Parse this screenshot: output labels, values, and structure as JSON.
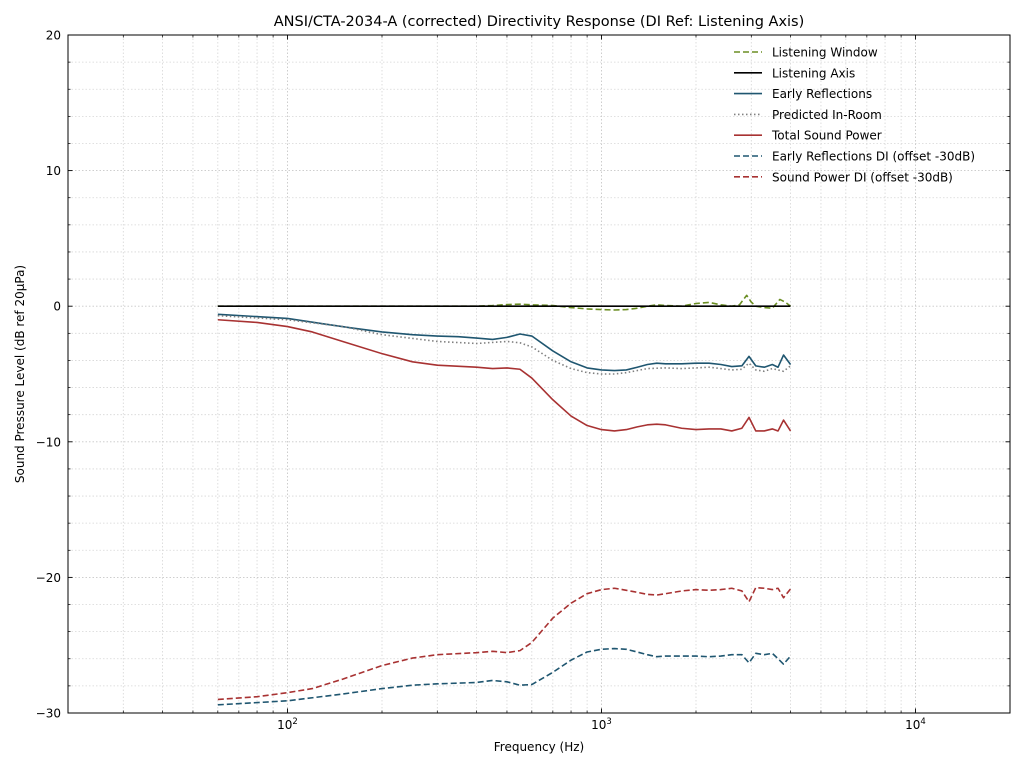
{
  "chart_data": {
    "type": "line",
    "title": "ANSI/CTA-2034-A (corrected) Directivity Response (DI Ref: Listening Axis)",
    "xlabel": "Frequency (Hz)",
    "ylabel": "Sound Pressure Level (dB ref 20µPa)",
    "x_scale": "log",
    "xlim": [
      20,
      20000
    ],
    "ylim": [
      -30,
      20
    ],
    "y_ticks": [
      -30,
      -20,
      -10,
      0,
      10,
      20
    ],
    "y_tick_labels": [
      "−30",
      "−20",
      "−10",
      "0",
      "10",
      "20"
    ],
    "x_ticks": [
      100,
      1000,
      10000
    ],
    "x_tick_base": "10",
    "x_tick_exponents": [
      "2",
      "3",
      "4"
    ],
    "grid": true,
    "legend_position": "top-right",
    "series": [
      {
        "name": "Listening Window",
        "color": "#6b8e23",
        "dash": "dashed",
        "x": [
          60,
          100,
          200,
          300,
          400,
          450,
          500,
          550,
          600,
          700,
          800,
          900,
          1000,
          1100,
          1200,
          1300,
          1400,
          1500,
          1600,
          1800,
          2000,
          2200,
          2400,
          2600,
          2750,
          2900,
          3000,
          3100,
          3300,
          3500,
          3700,
          3850,
          4000
        ],
        "y": [
          0,
          0,
          0,
          0,
          0,
          0.05,
          0.12,
          0.15,
          0.1,
          0.05,
          -0.1,
          -0.2,
          -0.25,
          -0.28,
          -0.25,
          -0.15,
          0,
          0.1,
          0.05,
          0,
          0.2,
          0.28,
          0.1,
          0.0,
          0.1,
          0.8,
          0.3,
          0,
          -0.1,
          -0.15,
          0.5,
          0.3,
          0
        ]
      },
      {
        "name": "Listening Axis",
        "color": "#000000",
        "dash": "solid",
        "x": [
          60,
          4000
        ],
        "y": [
          0,
          0
        ]
      },
      {
        "name": "Early Reflections",
        "color": "#1f5670",
        "dash": "solid",
        "x": [
          60,
          100,
          130,
          160,
          200,
          250,
          300,
          350,
          400,
          450,
          500,
          550,
          600,
          700,
          800,
          900,
          1000,
          1100,
          1200,
          1300,
          1400,
          1500,
          1600,
          1800,
          2000,
          2200,
          2400,
          2600,
          2800,
          2950,
          3100,
          3300,
          3500,
          3650,
          3800,
          4000
        ],
        "y": [
          -0.6,
          -0.9,
          -1.3,
          -1.6,
          -1.9,
          -2.1,
          -2.2,
          -2.25,
          -2.35,
          -2.45,
          -2.3,
          -2.05,
          -2.2,
          -3.3,
          -4.1,
          -4.55,
          -4.7,
          -4.75,
          -4.7,
          -4.5,
          -4.3,
          -4.2,
          -4.25,
          -4.25,
          -4.2,
          -4.2,
          -4.3,
          -4.45,
          -4.4,
          -3.7,
          -4.4,
          -4.5,
          -4.3,
          -4.5,
          -3.6,
          -4.3
        ]
      },
      {
        "name": "Predicted In-Room",
        "color": "#808080",
        "dash": "dotted",
        "x": [
          60,
          100,
          150,
          200,
          300,
          400,
          500,
          550,
          600,
          700,
          800,
          900,
          1000,
          1100,
          1200,
          1400,
          1600,
          1800,
          2000,
          2200,
          2400,
          2600,
          2800,
          2950,
          3100,
          3300,
          3500,
          3800,
          4000
        ],
        "y": [
          -0.7,
          -1.0,
          -1.5,
          -2.1,
          -2.6,
          -2.75,
          -2.6,
          -2.7,
          -3.0,
          -4.0,
          -4.6,
          -4.9,
          -5.0,
          -5.0,
          -4.9,
          -4.6,
          -4.55,
          -4.6,
          -4.55,
          -4.5,
          -4.6,
          -4.7,
          -4.65,
          -4.2,
          -4.7,
          -4.8,
          -4.6,
          -4.8,
          -4.4
        ]
      },
      {
        "name": "Total Sound Power",
        "color": "#a83232",
        "dash": "solid",
        "x": [
          60,
          80,
          100,
          120,
          150,
          200,
          250,
          300,
          400,
          450,
          500,
          550,
          600,
          700,
          800,
          900,
          1000,
          1100,
          1200,
          1300,
          1400,
          1500,
          1600,
          1800,
          2000,
          2200,
          2400,
          2600,
          2800,
          2950,
          3100,
          3300,
          3500,
          3650,
          3800,
          4000
        ],
        "y": [
          -1.0,
          -1.2,
          -1.5,
          -1.9,
          -2.6,
          -3.5,
          -4.1,
          -4.35,
          -4.5,
          -4.6,
          -4.55,
          -4.65,
          -5.3,
          -6.9,
          -8.1,
          -8.8,
          -9.1,
          -9.2,
          -9.1,
          -8.9,
          -8.75,
          -8.7,
          -8.75,
          -9.0,
          -9.1,
          -9.05,
          -9.05,
          -9.2,
          -9.0,
          -8.2,
          -9.2,
          -9.2,
          -9.05,
          -9.2,
          -8.4,
          -9.2
        ]
      },
      {
        "name": "Early Reflections DI (offset -30dB)",
        "color": "#1f5670",
        "dash": "dashed",
        "x": [
          60,
          100,
          150,
          200,
          250,
          300,
          400,
          450,
          500,
          550,
          600,
          700,
          800,
          900,
          1000,
          1100,
          1200,
          1300,
          1400,
          1500,
          1600,
          1800,
          2000,
          2200,
          2400,
          2600,
          2800,
          2950,
          3100,
          3300,
          3500,
          3650,
          3800,
          4000
        ],
        "y": [
          -29.4,
          -29.1,
          -28.6,
          -28.2,
          -27.95,
          -27.85,
          -27.75,
          -27.6,
          -27.7,
          -27.95,
          -27.9,
          -27.0,
          -26.1,
          -25.5,
          -25.3,
          -25.25,
          -25.3,
          -25.5,
          -25.7,
          -25.85,
          -25.8,
          -25.8,
          -25.8,
          -25.85,
          -25.8,
          -25.7,
          -25.7,
          -26.3,
          -25.6,
          -25.7,
          -25.6,
          -26.0,
          -26.4,
          -25.8
        ]
      },
      {
        "name": "Sound Power DI (offset -30dB)",
        "color": "#a83232",
        "dash": "dashed",
        "x": [
          60,
          80,
          100,
          120,
          150,
          200,
          250,
          300,
          400,
          450,
          500,
          550,
          600,
          700,
          800,
          900,
          1000,
          1100,
          1200,
          1300,
          1400,
          1500,
          1600,
          1800,
          2000,
          2200,
          2400,
          2600,
          2800,
          2950,
          3100,
          3300,
          3500,
          3650,
          3800,
          4000
        ],
        "y": [
          -29.0,
          -28.8,
          -28.5,
          -28.2,
          -27.5,
          -26.5,
          -25.95,
          -25.7,
          -25.55,
          -25.45,
          -25.55,
          -25.4,
          -24.8,
          -23.0,
          -21.9,
          -21.2,
          -20.9,
          -20.8,
          -20.95,
          -21.1,
          -21.25,
          -21.3,
          -21.2,
          -21.0,
          -20.9,
          -20.95,
          -20.9,
          -20.8,
          -21.0,
          -21.8,
          -20.75,
          -20.8,
          -20.9,
          -20.8,
          -21.5,
          -20.85
        ]
      }
    ]
  }
}
